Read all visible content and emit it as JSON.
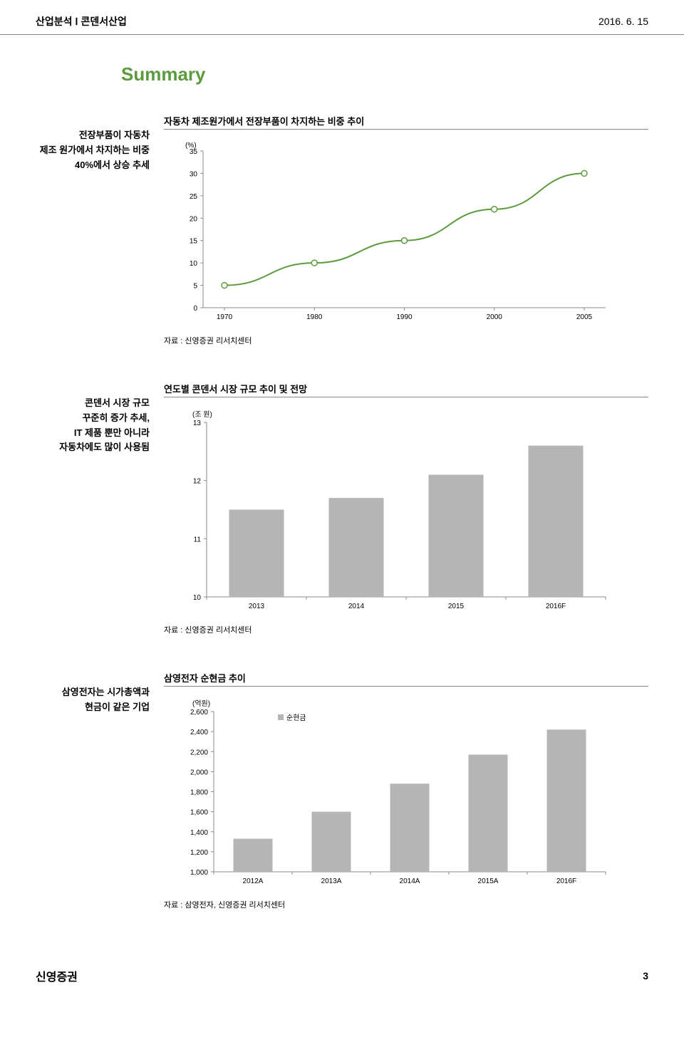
{
  "header": {
    "left_category": "산업분석",
    "left_sep": "Ⅰ",
    "left_industry": "콘덴서산업",
    "date": "2016. 6. 15"
  },
  "summary_title": "Summary",
  "summary_color": "#5b9b3e",
  "chart1": {
    "sidebar_lines": [
      "전장부품이 자동차",
      "제조 원가에서 차지하는 비중",
      "40%에서 상승 추세"
    ],
    "title": "자동차 제조원가에서 전장부품이 차지하는 비중 추이",
    "type": "line",
    "ylabel": "(%)",
    "ylim": [
      0,
      35
    ],
    "ytick_step": 5,
    "yticks": [
      0,
      5,
      10,
      15,
      20,
      25,
      30,
      35
    ],
    "xticks": [
      "1970",
      "1980",
      "1990",
      "2000",
      "2005"
    ],
    "values": [
      5,
      10,
      15,
      22,
      30
    ],
    "line_color": "#5b9b3e",
    "line_width": 2,
    "marker_fill": "#ffffff",
    "marker_stroke": "#5b9b3e",
    "marker_radius": 4,
    "grid_color": "#8a8a8a",
    "tick_fontsize": 10,
    "source": "자료 : 신영증권 리서치센터"
  },
  "chart2": {
    "sidebar_lines": [
      "콘덴서 시장 규모",
      "꾸준히 증가 추세,",
      "IT 제품 뿐만 아니라",
      "자동차에도 많이 사용됨"
    ],
    "title": "연도별 콘덴서 시장 규모 추이 및 전망",
    "type": "bar",
    "ylabel": "(조 원)",
    "ylim": [
      10,
      13
    ],
    "ytick_step": 1,
    "yticks": [
      10,
      11,
      12,
      13
    ],
    "xticks": [
      "2013",
      "2014",
      "2015",
      "2016F"
    ],
    "values": [
      11.5,
      11.7,
      12.1,
      12.6
    ],
    "bar_color": "#b5b5b5",
    "bar_width": 0.55,
    "grid_color": "#8a8a8a",
    "tick_fontsize": 10,
    "source": "자료 : 신영증권 리서치센터"
  },
  "chart3": {
    "sidebar_lines": [
      "삼영전자는 시가총액과",
      "현금이 같은 기업"
    ],
    "title": "삼영전자 순현금 추이",
    "type": "bar",
    "ylabel": "(억원)",
    "legend_label": "순현금",
    "legend_marker_color": "#b5b5b5",
    "ylim": [
      1000,
      2600
    ],
    "ytick_step": 200,
    "yticks": [
      1000,
      1200,
      1400,
      1600,
      1800,
      2000,
      2200,
      2400,
      2600
    ],
    "xticks": [
      "2012A",
      "2013A",
      "2014A",
      "2015A",
      "2016F"
    ],
    "values": [
      1330,
      1600,
      1880,
      2170,
      2420
    ],
    "bar_color": "#b5b5b5",
    "bar_width": 0.5,
    "grid_color": "#8a8a8a",
    "tick_fontsize": 10,
    "source": "자료 : 삼영전자, 신영증권 리서치센터"
  },
  "footer": {
    "logo": "신영증권",
    "page_number": "3"
  }
}
